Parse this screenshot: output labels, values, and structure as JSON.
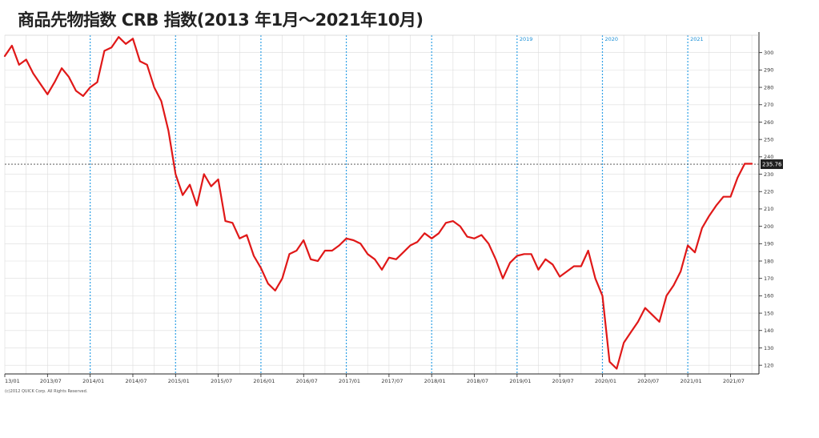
{
  "page": {
    "title": "商品先物指数 CRB 指数(2013 年1月〜2021年10月)",
    "copyright": "(c)2012 QUICK Corp. All Rights Reserved."
  },
  "colors": {
    "line": "#e01818",
    "year_divider": "#2ea0e6",
    "grid": "#dcdcdc",
    "last_value_bg": "#1f1f1f",
    "last_value_line": "#444444"
  },
  "chart_data": {
    "type": "line",
    "title": "商品先物指数 CRB 指数(2013 年1月〜2021年10月)",
    "xlabel": "",
    "ylabel": "",
    "ylim": [
      115,
      310
    ],
    "y_ticks": [
      120,
      130,
      140,
      150,
      160,
      170,
      180,
      190,
      200,
      210,
      220,
      230,
      240,
      250,
      260,
      270,
      280,
      290,
      300
    ],
    "y_axis_side": "right",
    "grid": true,
    "x_ticks": [
      {
        "label": "13/01",
        "m": 0
      },
      {
        "label": "2013/07",
        "m": 6
      },
      {
        "label": "2014/01",
        "m": 12
      },
      {
        "label": "2014/07",
        "m": 18
      },
      {
        "label": "2015/01",
        "m": 24
      },
      {
        "label": "2015/07",
        "m": 30
      },
      {
        "label": "2016/01",
        "m": 36
      },
      {
        "label": "2016/07",
        "m": 42
      },
      {
        "label": "2017/01",
        "m": 48
      },
      {
        "label": "2017/07",
        "m": 54
      },
      {
        "label": "2018/01",
        "m": 60
      },
      {
        "label": "2018/07",
        "m": 66
      },
      {
        "label": "2019/01",
        "m": 72
      },
      {
        "label": "2019/07",
        "m": 78
      },
      {
        "label": "2020/01",
        "m": 84
      },
      {
        "label": "2020/07",
        "m": 90
      },
      {
        "label": "2021/01",
        "m": 96
      },
      {
        "label": "2021/07",
        "m": 102
      }
    ],
    "year_dividers": [
      12,
      24,
      36,
      48,
      60,
      72,
      84,
      96
    ],
    "year_labels": [
      {
        "label": "2019",
        "m": 72
      },
      {
        "label": "2020",
        "m": 84
      },
      {
        "label": "2021",
        "m": 96
      }
    ],
    "last_value": 235.76,
    "last_value_label": "235.76",
    "series": [
      {
        "x": [
          0,
          1,
          2,
          3,
          4,
          5,
          6,
          7,
          8,
          9,
          10,
          11,
          12,
          13,
          14,
          15,
          16,
          17,
          18,
          19,
          20,
          21,
          22,
          23,
          24,
          25,
          26,
          27,
          28,
          29,
          30,
          31,
          32,
          33,
          34,
          35,
          36,
          37,
          38,
          39,
          40,
          41,
          42,
          43,
          44,
          45,
          46,
          47,
          48,
          49,
          50,
          51,
          52,
          53,
          54,
          55,
          56,
          57,
          58,
          59,
          60,
          61,
          62,
          63,
          64,
          65,
          66,
          67,
          68,
          69,
          70,
          71,
          72,
          73,
          74,
          75,
          76,
          77,
          78,
          79,
          80,
          81,
          82,
          83,
          84,
          85,
          86,
          87,
          88,
          89,
          90,
          91,
          92,
          93,
          94,
          95,
          96,
          97,
          98,
          99,
          100,
          101,
          102,
          103,
          104,
          105
        ],
        "values": [
          298,
          304,
          293,
          296,
          288,
          282,
          276,
          283,
          291,
          286,
          278,
          275,
          280,
          283,
          301,
          303,
          309,
          305,
          308,
          295,
          293,
          280,
          272,
          255,
          230,
          218,
          224,
          212,
          230,
          223,
          227,
          203,
          202,
          193,
          195,
          183,
          176,
          167,
          163,
          170,
          184,
          186,
          192,
          181,
          180,
          186,
          186,
          189,
          193,
          192,
          190,
          184,
          181,
          175,
          182,
          181,
          185,
          189,
          191,
          196,
          193,
          196,
          202,
          203,
          200,
          194,
          193,
          195,
          190,
          181,
          170,
          179,
          183,
          184,
          184,
          175,
          181,
          178,
          171,
          174,
          177,
          177,
          186,
          170,
          160,
          122,
          118,
          133,
          139,
          145,
          153,
          149,
          145,
          160,
          166,
          174,
          189,
          185,
          199,
          206,
          212,
          217,
          217,
          228,
          236,
          236
        ]
      }
    ]
  }
}
